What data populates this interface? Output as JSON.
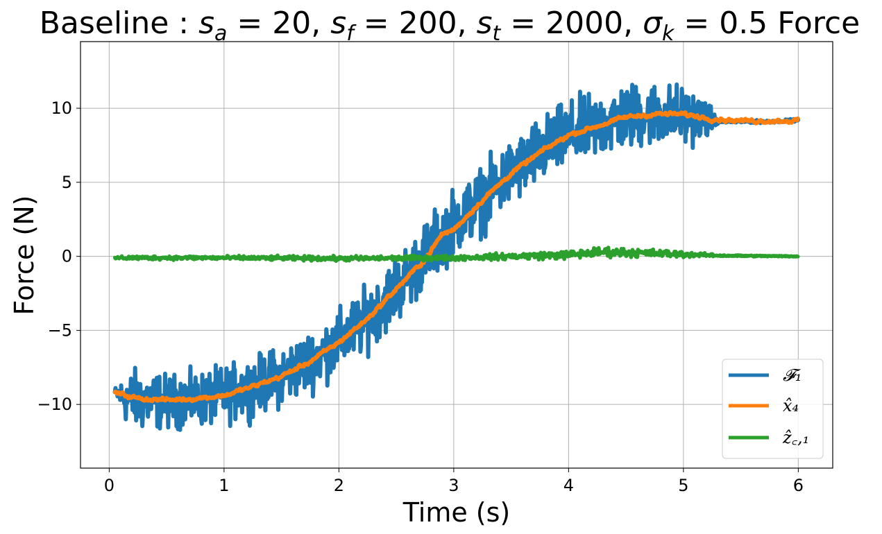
{
  "chart_data": {
    "type": "line",
    "title": "Baseline : s_a = 20, s_f = 200, s_t = 2000, σ_k = 0.5 Force",
    "title_parts": {
      "prefix": "Baseline",
      "s_a": "20",
      "s_f": "200",
      "s_t": "2000",
      "sigma_k": "0.5",
      "suffix": "Force"
    },
    "xlabel": "Time (s)",
    "ylabel": "Force (N)",
    "xlim": [
      -0.25,
      6.3
    ],
    "ylim": [
      -14.3,
      14.5
    ],
    "xticks": [
      0,
      1,
      2,
      3,
      4,
      5,
      6
    ],
    "xtick_labels": [
      "0",
      "1",
      "2",
      "3",
      "4",
      "5",
      "6"
    ],
    "yticks": [
      -10,
      -5,
      0,
      5,
      10
    ],
    "ytick_labels": [
      "−10",
      "−5",
      "0",
      "5",
      "10"
    ],
    "grid": true,
    "legend_position": "lower-right",
    "series": [
      {
        "name": "F_1",
        "legend_label": "𝓕₁",
        "color": "#1f77b4",
        "x": [
          0.05,
          0.15,
          0.25,
          0.5,
          0.75,
          1.0,
          1.25,
          1.5,
          1.75,
          2.0,
          2.25,
          2.5,
          2.75,
          3.0,
          3.25,
          3.5,
          3.75,
          4.0,
          4.25,
          4.5,
          4.75,
          5.0,
          5.2,
          5.3,
          5.5,
          5.75,
          6.0
        ],
        "values": [
          -9.2,
          -9.6,
          -9.7,
          -9.8,
          -9.7,
          -9.4,
          -8.8,
          -8.1,
          -7.1,
          -5.8,
          -4.2,
          -2.2,
          0.0,
          2.3,
          3.8,
          5.6,
          7.0,
          8.2,
          8.8,
          9.4,
          9.6,
          9.5,
          9.3,
          9.1,
          9.1,
          9.1,
          9.2
        ],
        "noise_amplitude": [
          0.3,
          1.5,
          1.9,
          1.6,
          1.6,
          1.7,
          1.7,
          1.8,
          1.8,
          1.9,
          1.9,
          2.0,
          2.0,
          2.0,
          2.0,
          2.0,
          2.0,
          2.0,
          2.0,
          2.0,
          1.9,
          1.8,
          1.2,
          0.1,
          0.08,
          0.08,
          0.08
        ]
      },
      {
        "name": "x_hat_4",
        "legend_label": "x̂₄",
        "color": "#ff7f0e",
        "x": [
          0.05,
          0.25,
          0.5,
          0.75,
          1.0,
          1.25,
          1.5,
          1.75,
          2.0,
          2.25,
          2.5,
          2.75,
          2.9,
          3.0,
          3.25,
          3.5,
          3.75,
          4.0,
          4.25,
          4.5,
          4.75,
          5.0,
          5.25,
          5.5,
          6.0
        ],
        "values": [
          -9.2,
          -9.6,
          -9.7,
          -9.6,
          -9.4,
          -8.8,
          -8.1,
          -7.1,
          -5.8,
          -4.2,
          -2.2,
          -0.2,
          1.5,
          1.8,
          3.8,
          5.6,
          7.0,
          8.2,
          8.8,
          9.4,
          9.6,
          9.6,
          9.3,
          9.15,
          9.15
        ],
        "noise_amplitude": 0.22
      },
      {
        "name": "z_hat_c1",
        "legend_label": "ẑ꜀,₁",
        "color": "#2ca02c",
        "x": [
          0.05,
          1.0,
          2.0,
          3.0,
          4.0,
          4.3,
          5.0,
          5.3,
          6.0
        ],
        "values": [
          -0.1,
          -0.1,
          -0.15,
          -0.1,
          0.1,
          0.3,
          0.15,
          0.05,
          0.0
        ],
        "noise_amplitude": [
          0.12,
          0.12,
          0.15,
          0.15,
          0.25,
          0.3,
          0.2,
          0.05,
          0.03
        ]
      }
    ]
  }
}
